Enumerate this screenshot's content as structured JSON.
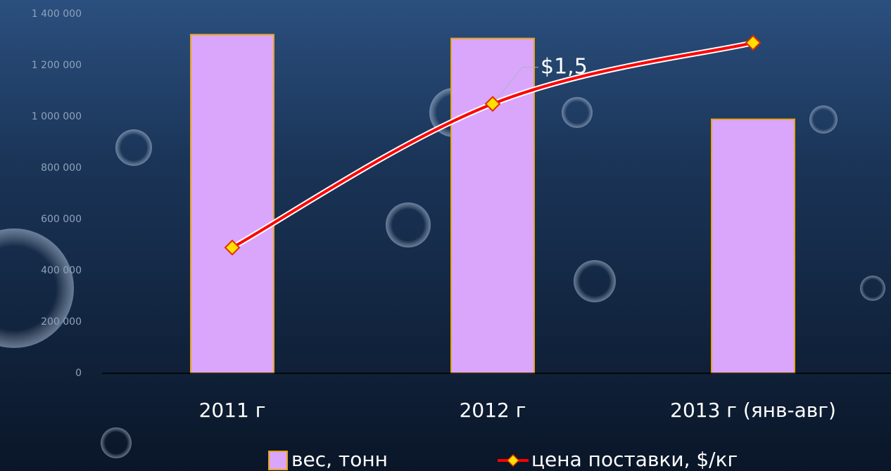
{
  "chart_data": {
    "type": "bar",
    "categories": [
      "2011 г",
      "2012 г",
      "2013 г (янв-авг)"
    ],
    "series": [
      {
        "name": "вес, тонн",
        "type": "bar",
        "color": "#d9a6fb",
        "edge_color": "#e8a41c",
        "values": [
          1320000,
          1305000,
          990000
        ]
      },
      {
        "name": "цена поставки, $/кг",
        "type": "line",
        "axis": "y2",
        "color": "#ff0000",
        "marker_color": "#ffe000",
        "values": [
          0.7,
          1.5,
          1.84
        ],
        "value_labels": [
          null,
          "$1,5",
          null
        ]
      }
    ],
    "ylim": [
      0,
      1400000
    ],
    "yticks": [
      0,
      {
        "value": 200000,
        "label": "200 000"
      },
      {
        "value": 400000,
        "label": "400 000"
      },
      {
        "value": 600000,
        "label": "600 000"
      },
      {
        "value": 800000,
        "label": "800 000"
      },
      {
        "value": 1000000,
        "label": "1 000 000"
      },
      {
        "value": 1200000,
        "label": "1 200 000"
      },
      {
        "value": 1400000,
        "label": "1 400 000"
      }
    ],
    "y2lim": [
      0,
      2
    ],
    "legend": "bottom"
  }
}
